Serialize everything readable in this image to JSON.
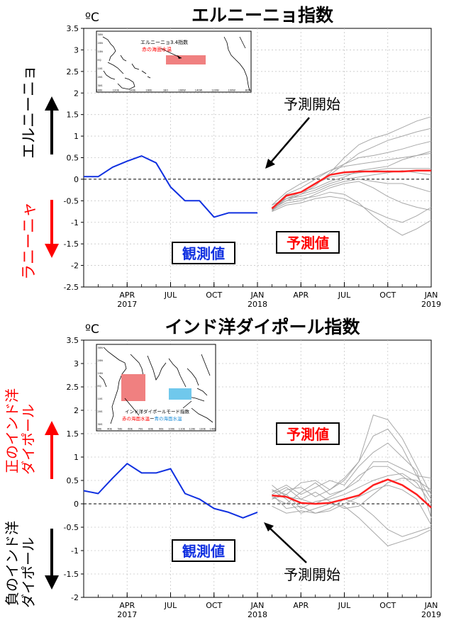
{
  "chart_data": [
    {
      "type": "line",
      "title": "エルニーニョ指数",
      "unit": "ºC",
      "ylim": [
        -2.5,
        3.5
      ],
      "yticks": [
        "3.5",
        "3",
        "2.5",
        "2",
        "1.5",
        "1",
        "0.5",
        "0",
        "-0.5",
        "-1",
        "-1.5",
        "-2",
        "-2.5"
      ],
      "ytick_values": [
        3.5,
        3,
        2.5,
        2,
        1.5,
        1,
        0.5,
        0,
        -0.5,
        -1,
        -1.5,
        -2,
        -2.5
      ],
      "x_months": [
        0,
        24
      ],
      "xticks": [
        {
          "x": 3,
          "label": "APR",
          "year": "2017"
        },
        {
          "x": 6,
          "label": "JUL",
          "year": ""
        },
        {
          "x": 9,
          "label": "OCT",
          "year": ""
        },
        {
          "x": 12,
          "label": "JAN",
          "year": "2018"
        },
        {
          "x": 15,
          "label": "APR",
          "year": ""
        },
        {
          "x": 18,
          "label": "JUL",
          "year": ""
        },
        {
          "x": 21,
          "label": "OCT",
          "year": ""
        },
        {
          "x": 24,
          "label": "JAN",
          "year": "2019"
        }
      ],
      "left_labels": {
        "up": "エルニーニョ",
        "down": "ラニーニャ"
      },
      "left_label_colors": {
        "up": "#000000",
        "down": "#ff0000"
      },
      "observed_label": "観測値",
      "forecast_label": "予測値",
      "forecast_start_label": "予測開始",
      "observed": {
        "name": "観測値",
        "color": "#1030e0",
        "x": [
          0,
          1,
          2,
          3,
          4,
          5,
          6,
          7,
          8,
          9,
          10,
          11,
          12
        ],
        "y": [
          0.06,
          0.06,
          0.28,
          0.42,
          0.54,
          0.38,
          -0.18,
          -0.5,
          -0.5,
          -0.88,
          -0.78,
          -0.78,
          -0.78
        ]
      },
      "forecast_mean": {
        "name": "予測値",
        "color": "#ff2020",
        "x": [
          13,
          14,
          15,
          16,
          17,
          18,
          19,
          20,
          21,
          22,
          23,
          24
        ],
        "y": [
          -0.68,
          -0.38,
          -0.3,
          -0.1,
          0.1,
          0.16,
          0.18,
          0.18,
          0.18,
          0.18,
          0.2,
          0.2
        ]
      },
      "ensemble": {
        "color": "#a8a8a8",
        "x": [
          13,
          14,
          15,
          16,
          17,
          18,
          19,
          20,
          21,
          22,
          23,
          24
        ],
        "members": [
          [
            -0.72,
            -0.45,
            -0.35,
            -0.15,
            0.15,
            0.5,
            0.8,
            0.95,
            1.05,
            1.2,
            1.35,
            1.45
          ],
          [
            -0.7,
            -0.4,
            -0.3,
            -0.1,
            0.1,
            0.35,
            0.6,
            0.75,
            0.9,
            1.0,
            1.1,
            1.18
          ],
          [
            -0.68,
            -0.35,
            -0.2,
            0.0,
            0.2,
            0.35,
            0.5,
            0.55,
            0.62,
            0.7,
            0.8,
            0.88
          ],
          [
            -0.6,
            -0.3,
            -0.1,
            0.05,
            0.2,
            0.3,
            0.35,
            0.4,
            0.45,
            0.5,
            0.55,
            0.6
          ],
          [
            -0.75,
            -0.4,
            -0.3,
            -0.1,
            0.05,
            0.1,
            0.15,
            0.2,
            0.25,
            0.25,
            0.25,
            0.25
          ],
          [
            -0.7,
            -0.5,
            -0.35,
            -0.25,
            -0.1,
            0.0,
            0.05,
            0.1,
            0.15,
            0.2,
            0.15,
            0.1
          ],
          [
            -0.65,
            -0.45,
            -0.4,
            -0.3,
            -0.15,
            -0.05,
            0.0,
            -0.05,
            -0.1,
            -0.1,
            -0.2,
            -0.3
          ],
          [
            -0.72,
            -0.55,
            -0.5,
            -0.35,
            -0.2,
            -0.1,
            -0.05,
            -0.2,
            -0.4,
            -0.55,
            -0.65,
            -0.72
          ],
          [
            -0.68,
            -0.5,
            -0.45,
            -0.4,
            -0.3,
            -0.35,
            -0.55,
            -0.85,
            -1.1,
            -1.3,
            -1.15,
            -0.95
          ],
          [
            -0.6,
            -0.45,
            -0.3,
            -0.2,
            -0.05,
            0.05,
            0.2,
            0.25,
            0.3,
            0.45,
            0.55,
            0.65
          ],
          [
            -0.75,
            -0.6,
            -0.55,
            -0.45,
            -0.4,
            -0.45,
            -0.6,
            -0.75,
            -0.9,
            -1.0,
            -0.85,
            -0.65
          ]
        ]
      },
      "inset": {
        "title": "エルニーニョ3.4指数",
        "subtitle": "赤の海面水温",
        "lon_labels": [
          "100E",
          "120E",
          "140E",
          "160E",
          "180",
          "160W",
          "140W",
          "120W",
          "100W",
          "80W"
        ],
        "lat_labels": [
          "30N",
          "20N",
          "10N",
          "EQ",
          "10S",
          "20S",
          "30S"
        ],
        "box_color": "#f08080"
      }
    },
    {
      "type": "line",
      "title": "インド洋ダイポール指数",
      "unit": "ºC",
      "ylim": [
        -2,
        3.5
      ],
      "yticks": [
        "3.5",
        "3",
        "2.5",
        "2",
        "1.5",
        "1",
        "0.5",
        "0",
        "-0.5",
        "-1",
        "-1.5",
        "-2"
      ],
      "ytick_values": [
        3.5,
        3,
        2.5,
        2,
        1.5,
        1,
        0.5,
        0,
        -0.5,
        -1,
        -1.5,
        -2
      ],
      "x_months": [
        0,
        24
      ],
      "xticks": [
        {
          "x": 3,
          "label": "APR",
          "year": "2017"
        },
        {
          "x": 6,
          "label": "JUL",
          "year": ""
        },
        {
          "x": 9,
          "label": "OCT",
          "year": ""
        },
        {
          "x": 12,
          "label": "JAN",
          "year": "2018"
        },
        {
          "x": 15,
          "label": "APR",
          "year": ""
        },
        {
          "x": 18,
          "label": "JUL",
          "year": ""
        },
        {
          "x": 21,
          "label": "OCT",
          "year": ""
        },
        {
          "x": 24,
          "label": "JAN",
          "year": "2019"
        }
      ],
      "left_labels": {
        "up1": "正のインド洋",
        "up2": "ダイポール",
        "down1": "負のインド洋",
        "down2": "ダイポール"
      },
      "left_label_colors": {
        "up": "#ff0000",
        "down": "#000000"
      },
      "observed_label": "観測値",
      "forecast_label": "予測値",
      "forecast_start_label": "予測開始",
      "observed": {
        "name": "観測値",
        "color": "#1030e0",
        "x": [
          0,
          1,
          2,
          3,
          4,
          5,
          6,
          7,
          8,
          9,
          10,
          11,
          12
        ],
        "y": [
          0.28,
          0.22,
          0.55,
          0.86,
          0.66,
          0.66,
          0.75,
          0.22,
          0.1,
          -0.1,
          -0.18,
          -0.3,
          -0.18
        ]
      },
      "forecast_mean": {
        "name": "予測値",
        "color": "#ff2020",
        "x": [
          13,
          14,
          15,
          16,
          17,
          18,
          19,
          20,
          21,
          22,
          23,
          24
        ],
        "y": [
          0.18,
          0.15,
          0.02,
          0.0,
          0.02,
          0.1,
          0.18,
          0.4,
          0.52,
          0.4,
          0.2,
          -0.08
        ]
      },
      "ensemble": {
        "color": "#a8a8a8",
        "x": [
          13,
          14,
          15,
          16,
          17,
          18,
          19,
          20,
          21,
          22,
          23,
          24
        ],
        "members": [
          [
            0.3,
            0.2,
            0.45,
            0.5,
            0.3,
            0.5,
            0.9,
            1.9,
            1.8,
            1.4,
            0.8,
            0.2
          ],
          [
            0.1,
            0.3,
            0.35,
            0.15,
            0.3,
            0.55,
            0.9,
            1.45,
            1.6,
            1.2,
            0.6,
            0.1
          ],
          [
            0.25,
            0.4,
            0.2,
            0.35,
            0.5,
            0.4,
            0.8,
            1.1,
            1.3,
            1.0,
            0.7,
            -0.3
          ],
          [
            0.15,
            0.0,
            0.25,
            0.45,
            0.2,
            0.3,
            0.5,
            0.9,
            0.9,
            0.75,
            0.6,
            0.55
          ],
          [
            0.4,
            0.15,
            0.1,
            0.0,
            0.15,
            0.3,
            0.6,
            0.8,
            0.8,
            0.6,
            0.35,
            0.25
          ],
          [
            0.1,
            0.2,
            -0.1,
            0.05,
            0.1,
            0.2,
            0.35,
            0.5,
            0.6,
            0.65,
            0.45,
            0.0
          ],
          [
            0.2,
            -0.1,
            -0.05,
            -0.2,
            -0.15,
            0.0,
            0.15,
            0.3,
            0.4,
            0.3,
            0.1,
            -0.45
          ],
          [
            -0.05,
            -0.2,
            -0.15,
            -0.2,
            -0.1,
            0.1,
            0.0,
            -0.25,
            -0.55,
            -0.7,
            -0.6,
            -0.5
          ],
          [
            0.3,
            0.1,
            -0.2,
            -0.1,
            0.0,
            -0.05,
            -0.3,
            -0.6,
            -0.9,
            -0.8,
            -0.7,
            -0.55
          ],
          [
            0.2,
            0.35,
            0.1,
            0.25,
            0.05,
            -0.1,
            -0.05,
            0.2,
            0.45,
            0.55,
            0.5,
            0.3
          ]
        ]
      },
      "inset": {
        "title": "インド洋ダイポールモード指数",
        "subtitle_red": "赤の海面水温",
        "subtitle_sep": "ー",
        "subtitle_blue": "青の海面水温",
        "lon_labels": [
          "30E",
          "40E",
          "50E",
          "60E",
          "70E",
          "80E",
          "90E",
          "100E",
          "110E",
          "120E",
          "130E",
          "140E"
        ],
        "lat_labels": [
          "30N",
          "20N",
          "10N",
          "EQ",
          "10S",
          "20S",
          "30S"
        ],
        "box_west_color": "#f08080",
        "box_east_color": "#70c8ec"
      }
    }
  ]
}
